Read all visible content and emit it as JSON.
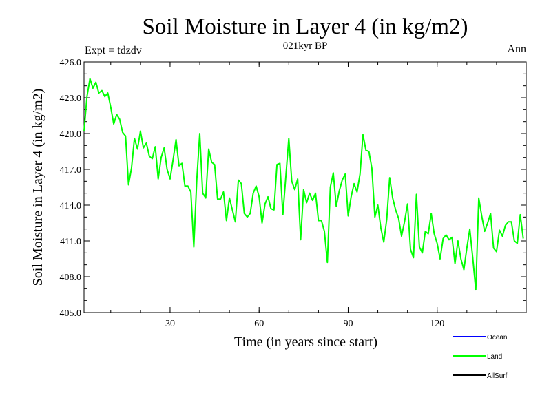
{
  "chart_data": {
    "type": "line",
    "title": "Soil Moisture in Layer 4 (in kg/m2)",
    "subtitle": "021kyr BP",
    "expt_label": "Expt = tdzdv",
    "period_label": "Ann",
    "xlabel": "Time (in years since start)",
    "ylabel": "Soil Moisture in Layer 4 (in kg/m2)",
    "xlim": [
      1,
      150
    ],
    "ylim": [
      405.0,
      426.0
    ],
    "x_ticks": [
      30,
      60,
      90,
      120
    ],
    "x_tick_labels": [
      "30",
      "60",
      "90",
      "120"
    ],
    "y_ticks": [
      405.0,
      408.0,
      411.0,
      414.0,
      417.0,
      420.0,
      423.0,
      426.0
    ],
    "y_tick_labels": [
      "405.0",
      "408.0",
      "411.0",
      "414.0",
      "417.0",
      "420.0",
      "423.0",
      "426.0"
    ],
    "legend": [
      {
        "name": "Ocean",
        "color": "#0000ff"
      },
      {
        "name": "Land",
        "color": "#00ff00"
      },
      {
        "name": "AllSurf",
        "color": "#000000"
      }
    ],
    "series": [
      {
        "name": "Land",
        "color": "#00ff00",
        "x_start": 1,
        "x_step": 1,
        "values": [
          420.2,
          423.1,
          424.6,
          423.8,
          424.3,
          423.4,
          423.6,
          423.1,
          423.4,
          422.2,
          420.8,
          421.6,
          421.2,
          420.1,
          419.8,
          415.7,
          417.1,
          419.6,
          418.7,
          420.2,
          418.8,
          419.2,
          418.1,
          417.9,
          418.9,
          416.2,
          418.0,
          418.8,
          417.0,
          416.2,
          417.8,
          419.5,
          417.3,
          417.5,
          415.6,
          415.6,
          415.1,
          410.5,
          416.1,
          420.0,
          415.0,
          414.6,
          418.7,
          417.6,
          417.4,
          414.5,
          414.5,
          415.1,
          412.7,
          414.6,
          413.6,
          412.6,
          416.1,
          415.8,
          413.3,
          413.0,
          413.3,
          415.0,
          415.6,
          414.7,
          412.5,
          414.1,
          414.7,
          413.7,
          413.6,
          417.4,
          417.5,
          413.2,
          416.4,
          419.6,
          416.0,
          415.3,
          416.2,
          411.1,
          415.3,
          414.2,
          415.0,
          414.4,
          415.0,
          412.7,
          412.7,
          411.8,
          409.2,
          415.5,
          416.7,
          413.9,
          415.2,
          416.1,
          416.6,
          413.1,
          414.7,
          415.8,
          415.1,
          416.6,
          419.9,
          418.6,
          418.5,
          417.1,
          413.0,
          414.0,
          412.1,
          410.9,
          412.8,
          416.3,
          414.6,
          413.6,
          412.9,
          411.4,
          412.6,
          414.1,
          410.3,
          409.6,
          414.9,
          410.5,
          410.0,
          411.8,
          411.6,
          413.3,
          411.6,
          410.8,
          409.5,
          411.2,
          411.5,
          411.1,
          411.3,
          409.1,
          411.0,
          409.5,
          408.6,
          410.4,
          412.0,
          409.6,
          406.9,
          414.6,
          413.1,
          411.8,
          412.5,
          413.3,
          410.4,
          410.1,
          411.9,
          411.4,
          412.3,
          412.6,
          412.6,
          411.0,
          410.8,
          413.2,
          411.2
        ]
      }
    ],
    "grid": false
  }
}
